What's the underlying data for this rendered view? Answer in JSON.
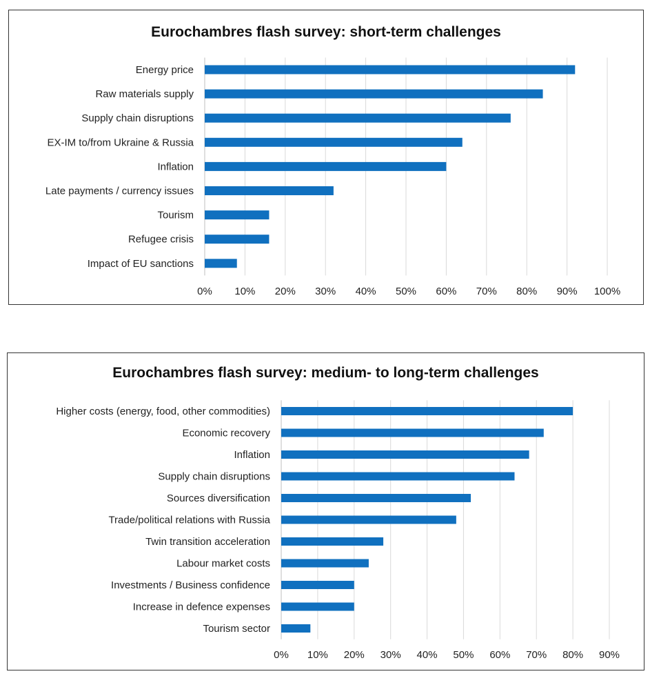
{
  "chart_data": [
    {
      "type": "bar",
      "orientation": "horizontal",
      "title": "Eurochambres flash survey: short-term challenges",
      "categories": [
        "Energy price",
        "Raw materials supply",
        "Supply chain disruptions",
        "EX-IM to/from Ukraine & Russia",
        "Inflation",
        "Late payments / currency issues",
        "Tourism",
        "Refugee crisis",
        "Impact of EU sanctions"
      ],
      "values": [
        92,
        84,
        76,
        64,
        60,
        32,
        16,
        16,
        8
      ],
      "value_unit": "%",
      "xlim": [
        0,
        100
      ],
      "xticks": [
        "0%",
        "10%",
        "20%",
        "30%",
        "40%",
        "50%",
        "60%",
        "70%",
        "80%",
        "90%",
        "100%"
      ],
      "xlabel": "",
      "ylabel": "",
      "grid": "vertical",
      "bar_color": "#1070BF",
      "grid_color": "#D9D9D9"
    },
    {
      "type": "bar",
      "orientation": "horizontal",
      "title": "Eurochambres flash survey: medium- to long-term challenges",
      "categories": [
        "Higher costs (energy, food, other commodities)",
        "Economic recovery",
        "Inflation",
        "Supply chain disruptions",
        "Sources diversification",
        "Trade/political relations with Russia",
        "Twin transition acceleration",
        "Labour market costs",
        "Investments / Business confidence",
        "Increase in defence expenses",
        "Tourism sector"
      ],
      "values": [
        80,
        72,
        68,
        64,
        52,
        48,
        28,
        24,
        20,
        20,
        8
      ],
      "value_unit": "%",
      "xlim": [
        0,
        90
      ],
      "xticks": [
        "0%",
        "10%",
        "20%",
        "30%",
        "40%",
        "50%",
        "60%",
        "70%",
        "80%",
        "90%"
      ],
      "xlabel": "",
      "ylabel": "",
      "grid": "vertical",
      "bar_color": "#1070BF",
      "grid_color": "#D9D9D9"
    }
  ]
}
